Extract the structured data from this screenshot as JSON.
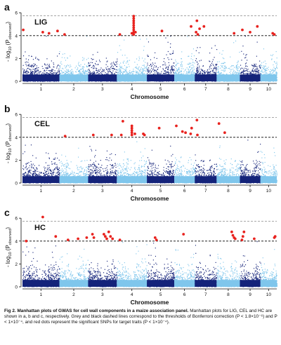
{
  "figure": {
    "caption_title": "Fig 2. Manhattan plots of GWAS for cell wall components in a maize association panel.",
    "caption_body": "Manhattan plots for LIG, CEL and HC are shown in a, b and c, respectively. Grey and black dashed lines correspond to the thresholds of Bonferroni correction (P < 1.8×10⁻⁶) and P < 1×10⁻⁴, and red dots represent the significant SNPs for target traits (P < 1×10⁻⁴)."
  },
  "colors": {
    "dark_chromosome": "#14237a",
    "light_chromosome": "#7fc6ec",
    "significant": "#e8231f",
    "bonferroni_line": "#9a9a9a",
    "suggestive_line": "#000000"
  },
  "chart_data": [
    {
      "type": "scatter",
      "panel_letter": "a",
      "title": "LIG",
      "xlabel": "Chromosome",
      "ylabel_main": "- log",
      "ylabel_sub": "10",
      "ylabel_p": "(P",
      "ylabel_p_sub": "observed",
      "ylabel_close": ")",
      "ylim": [
        0,
        6.5
      ],
      "yticks": [
        "0",
        "2",
        "4",
        "6"
      ],
      "chromosomes": [
        "1",
        "2",
        "3",
        "4",
        "5",
        "6",
        "7",
        "8",
        "9",
        "10"
      ],
      "thresholds": {
        "bonferroni": 5.74,
        "suggestive": 4.0
      },
      "significant_snps": [
        {
          "chr": 1,
          "pos": 0.02,
          "y": 4.5
        },
        {
          "chr": 1,
          "pos": 0.55,
          "y": 4.3
        },
        {
          "chr": 1,
          "pos": 0.72,
          "y": 4.2
        },
        {
          "chr": 1,
          "pos": 0.95,
          "y": 4.4
        },
        {
          "chr": 2,
          "pos": 0.18,
          "y": 4.1
        },
        {
          "chr": 4,
          "pos": 0.56,
          "y": 5.7
        },
        {
          "chr": 4,
          "pos": 0.56,
          "y": 5.5
        },
        {
          "chr": 4,
          "pos": 0.56,
          "y": 5.3
        },
        {
          "chr": 4,
          "pos": 0.56,
          "y": 5.1
        },
        {
          "chr": 4,
          "pos": 0.56,
          "y": 4.9
        },
        {
          "chr": 4,
          "pos": 0.56,
          "y": 4.7
        },
        {
          "chr": 4,
          "pos": 0.56,
          "y": 4.5
        },
        {
          "chr": 4,
          "pos": 0.56,
          "y": 4.3
        },
        {
          "chr": 4,
          "pos": 0.56,
          "y": 4.1
        },
        {
          "chr": 4,
          "pos": 0.5,
          "y": 4.2
        },
        {
          "chr": 4,
          "pos": 0.62,
          "y": 4.3
        },
        {
          "chr": 4,
          "pos": 0.1,
          "y": 4.1
        },
        {
          "chr": 5,
          "pos": 0.55,
          "y": 4.4
        },
        {
          "chr": 6,
          "pos": 0.82,
          "y": 4.8
        },
        {
          "chr": 7,
          "pos": 0.1,
          "y": 5.3
        },
        {
          "chr": 7,
          "pos": 0.06,
          "y": 4.3
        },
        {
          "chr": 7,
          "pos": 0.14,
          "y": 4.1
        },
        {
          "chr": 7,
          "pos": 0.22,
          "y": 4.6
        },
        {
          "chr": 7,
          "pos": 0.42,
          "y": 4.8
        },
        {
          "chr": 8,
          "pos": 0.75,
          "y": 4.2
        },
        {
          "chr": 9,
          "pos": 0.12,
          "y": 4.5
        },
        {
          "chr": 9,
          "pos": 0.5,
          "y": 4.3
        },
        {
          "chr": 9,
          "pos": 0.85,
          "y": 4.8
        },
        {
          "chr": 10,
          "pos": 0.75,
          "y": 4.2
        },
        {
          "chr": 10,
          "pos": 0.85,
          "y": 4.1
        }
      ]
    },
    {
      "type": "scatter",
      "panel_letter": "b",
      "title": "CEL",
      "xlabel": "Chromosome",
      "ylabel_main": "- log",
      "ylabel_sub": "10",
      "ylabel_p": "(P",
      "ylabel_p_sub": "observed",
      "ylabel_close": ")",
      "ylim": [
        0,
        6.5
      ],
      "yticks": [
        "0",
        "2",
        "4",
        "6"
      ],
      "chromosomes": [
        "1",
        "2",
        "3",
        "4",
        "5",
        "6",
        "7",
        "8",
        "9",
        "10"
      ],
      "thresholds": {
        "bonferroni": 5.74,
        "suggestive": 4.0
      },
      "significant_snps": [
        {
          "chr": 2,
          "pos": 0.2,
          "y": 4.1
        },
        {
          "chr": 3,
          "pos": 0.18,
          "y": 4.2
        },
        {
          "chr": 3,
          "pos": 0.82,
          "y": 4.2
        },
        {
          "chr": 4,
          "pos": 0.15,
          "y": 4.2
        },
        {
          "chr": 4,
          "pos": 0.2,
          "y": 5.4
        },
        {
          "chr": 4,
          "pos": 0.5,
          "y": 5.0
        },
        {
          "chr": 4,
          "pos": 0.5,
          "y": 4.8
        },
        {
          "chr": 4,
          "pos": 0.5,
          "y": 4.6
        },
        {
          "chr": 4,
          "pos": 0.5,
          "y": 4.4
        },
        {
          "chr": 4,
          "pos": 0.5,
          "y": 4.2
        },
        {
          "chr": 4,
          "pos": 0.6,
          "y": 4.3
        },
        {
          "chr": 4,
          "pos": 0.88,
          "y": 4.3
        },
        {
          "chr": 4,
          "pos": 0.92,
          "y": 4.2
        },
        {
          "chr": 5,
          "pos": 0.45,
          "y": 4.8
        },
        {
          "chr": 6,
          "pos": 0.1,
          "y": 5.0
        },
        {
          "chr": 6,
          "pos": 0.4,
          "y": 4.5
        },
        {
          "chr": 6,
          "pos": 0.55,
          "y": 4.4
        },
        {
          "chr": 6,
          "pos": 0.8,
          "y": 4.3
        },
        {
          "chr": 6,
          "pos": 0.85,
          "y": 4.8
        },
        {
          "chr": 7,
          "pos": 0.1,
          "y": 5.5
        },
        {
          "chr": 7,
          "pos": 0.12,
          "y": 4.2
        },
        {
          "chr": 8,
          "pos": 0.1,
          "y": 5.2
        },
        {
          "chr": 8,
          "pos": 0.35,
          "y": 4.4
        }
      ]
    },
    {
      "type": "scatter",
      "panel_letter": "c",
      "title": "HC",
      "xlabel": "Chromosome",
      "ylabel_main": "- log",
      "ylabel_sub": "10",
      "ylabel_p": "(P",
      "ylabel_p_sub": "observed",
      "ylabel_close": ")",
      "ylim": [
        0,
        6.5
      ],
      "yticks": [
        "0",
        "2",
        "4",
        "6"
      ],
      "chromosomes": [
        "1",
        "2",
        "3",
        "4",
        "5",
        "6",
        "7",
        "8",
        "9",
        "10"
      ],
      "thresholds": {
        "bonferroni": 5.74,
        "suggestive": 4.0
      },
      "significant_snps": [
        {
          "chr": 1,
          "pos": 0.1,
          "y": 4.0
        },
        {
          "chr": 1,
          "pos": 0.9,
          "y": 4.4
        },
        {
          "chr": 1,
          "pos": 0.55,
          "y": 6.1
        },
        {
          "chr": 2,
          "pos": 0.3,
          "y": 4.1
        },
        {
          "chr": 2,
          "pos": 0.65,
          "y": 4.2
        },
        {
          "chr": 2,
          "pos": 0.95,
          "y": 4.3
        },
        {
          "chr": 3,
          "pos": 0.15,
          "y": 4.6
        },
        {
          "chr": 3,
          "pos": 0.2,
          "y": 4.3
        },
        {
          "chr": 3,
          "pos": 0.55,
          "y": 4.6
        },
        {
          "chr": 3,
          "pos": 0.6,
          "y": 4.4
        },
        {
          "chr": 3,
          "pos": 0.65,
          "y": 4.2
        },
        {
          "chr": 3,
          "pos": 0.72,
          "y": 4.8
        },
        {
          "chr": 3,
          "pos": 0.78,
          "y": 4.4
        },
        {
          "chr": 3,
          "pos": 0.85,
          "y": 4.2
        },
        {
          "chr": 4,
          "pos": 0.1,
          "y": 4.1
        },
        {
          "chr": 5,
          "pos": 0.3,
          "y": 4.3
        },
        {
          "chr": 5,
          "pos": 0.35,
          "y": 4.1
        },
        {
          "chr": 6,
          "pos": 0.45,
          "y": 4.6
        },
        {
          "chr": 8,
          "pos": 0.65,
          "y": 4.8
        },
        {
          "chr": 8,
          "pos": 0.7,
          "y": 4.5
        },
        {
          "chr": 8,
          "pos": 0.75,
          "y": 4.3
        },
        {
          "chr": 8,
          "pos": 0.8,
          "y": 4.2
        },
        {
          "chr": 9,
          "pos": 0.1,
          "y": 4.1
        },
        {
          "chr": 9,
          "pos": 0.15,
          "y": 4.4
        },
        {
          "chr": 9,
          "pos": 0.2,
          "y": 4.8
        },
        {
          "chr": 9,
          "pos": 0.7,
          "y": 4.2
        },
        {
          "chr": 10,
          "pos": 0.85,
          "y": 4.3
        },
        {
          "chr": 10,
          "pos": 0.9,
          "y": 4.4
        }
      ]
    }
  ]
}
